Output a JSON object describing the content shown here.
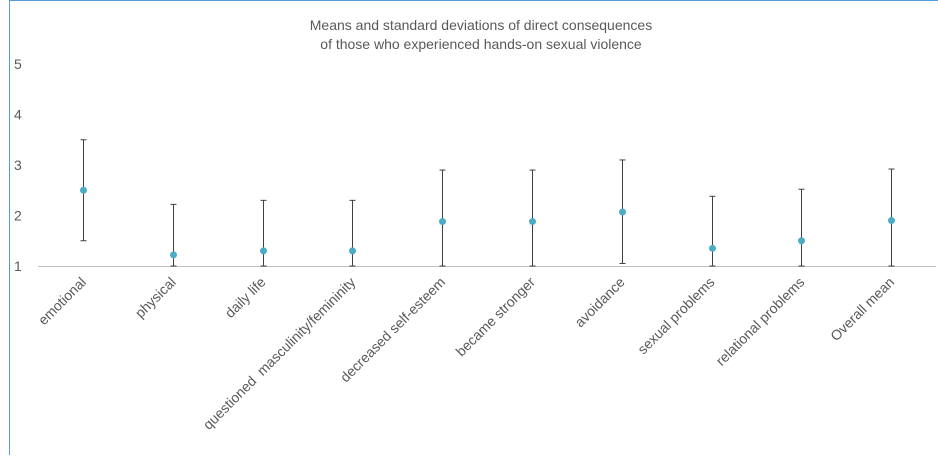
{
  "chart_data": {
    "type": "scatter",
    "title": [
      "Means and standard deviations of direct consequences",
      "of those who experienced hands-on sexual violence"
    ],
    "xlabel": "",
    "ylabel": "",
    "ylim": [
      1,
      5
    ],
    "yticks": [
      "1",
      "2",
      "3",
      "4",
      "5"
    ],
    "grid": false,
    "legend": "none",
    "categories": [
      "emotional",
      "physical",
      "daily life",
      "questioned  masculinity/femininity",
      "decreased self-esteem",
      "became stronger",
      "avoidance",
      "sexual problems",
      "relational problems",
      "Overall mean"
    ],
    "means": [
      2.5,
      1.22,
      1.3,
      1.3,
      1.88,
      1.88,
      2.07,
      1.35,
      1.5,
      1.9
    ],
    "error_high": [
      3.5,
      2.22,
      2.3,
      2.3,
      2.9,
      2.9,
      3.1,
      2.38,
      2.52,
      2.92
    ],
    "error_low": [
      1.5,
      1.0,
      1.0,
      1.0,
      1.0,
      1.0,
      1.05,
      1.0,
      1.0,
      1.0
    ],
    "colors": {
      "marker": "#4BACC6",
      "errorbar": "#404040",
      "axis": "#BFBFBF",
      "frame": "#5B9BD5",
      "text": "#595959"
    }
  }
}
